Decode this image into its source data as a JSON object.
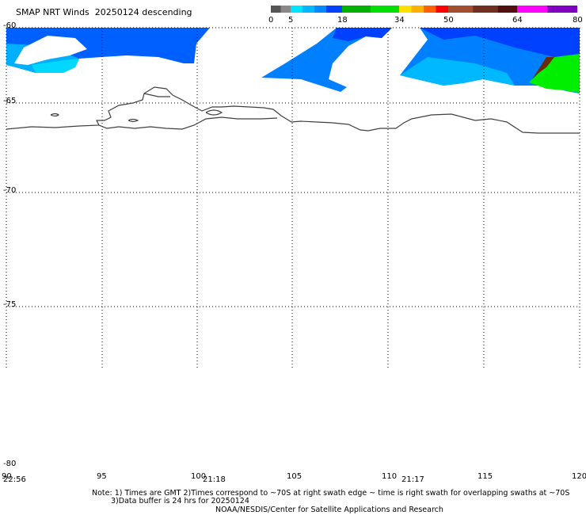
{
  "title": "SMAP NRT Winds  20250124 descending",
  "colorbar": {
    "ticks": [
      "0",
      "5",
      "18",
      "34",
      "50",
      "64",
      "80"
    ],
    "segments": [
      {
        "color": "#555555",
        "from": 0,
        "to": 2.5
      },
      {
        "color": "#888888",
        "from": 2.5,
        "to": 5
      },
      {
        "color": "#00e5ff",
        "from": 5,
        "to": 8
      },
      {
        "color": "#00b8ff",
        "from": 8,
        "to": 11
      },
      {
        "color": "#0088ff",
        "from": 11,
        "to": 14
      },
      {
        "color": "#0040ff",
        "from": 14,
        "to": 18
      },
      {
        "color": "#00b000",
        "from": 18,
        "to": 26
      },
      {
        "color": "#00e000",
        "from": 26,
        "to": 34
      },
      {
        "color": "#ffe000",
        "from": 34,
        "to": 38
      },
      {
        "color": "#ffb000",
        "from": 38,
        "to": 42
      },
      {
        "color": "#ff6000",
        "from": 42,
        "to": 46
      },
      {
        "color": "#ff0000",
        "from": 46,
        "to": 50
      },
      {
        "color": "#a05030",
        "from": 50,
        "to": 55
      },
      {
        "color": "#703020",
        "from": 55,
        "to": 60
      },
      {
        "color": "#501010",
        "from": 60,
        "to": 64
      },
      {
        "color": "#ff00ff",
        "from": 64,
        "to": 72
      },
      {
        "color": "#8000c0",
        "from": 72,
        "to": 80
      }
    ]
  },
  "lat_labels": [
    "-60",
    "-65",
    "-70",
    "-75",
    "-80"
  ],
  "lon_labels": [
    "90",
    "95",
    "100",
    "105",
    "110",
    "115",
    "120"
  ],
  "time_labels": [
    "22:56",
    "21:18",
    "21:17"
  ],
  "notes": {
    "line1": "Note: 1) Times are GMT 2)Times correspond to ~70S at right swath edge ~ time is right swath for overlapping swaths at ~70S",
    "line2": "3)Data buffer is 24 hrs for 20250124",
    "line3": "NOAA/NESDIS/Center for Satellite Applications and Research"
  },
  "colors": {
    "wind_light": "#00d8ff",
    "wind_mid": "#0090ff",
    "wind_dark": "#0050ff",
    "wind_high": "#00dd00",
    "coast": "#404040"
  }
}
